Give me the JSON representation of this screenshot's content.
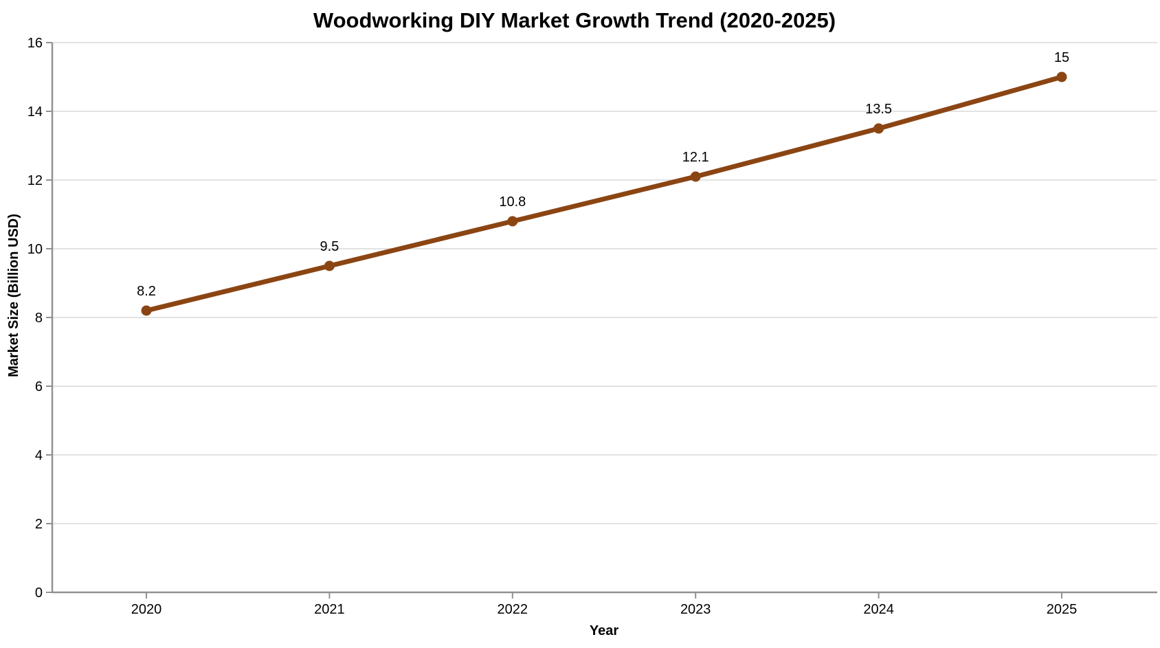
{
  "chart_data": {
    "type": "line",
    "title": "Woodworking DIY Market Growth Trend (2020-2025)",
    "xlabel": "Year",
    "ylabel": "Market Size (Billion USD)",
    "categories": [
      "2020",
      "2021",
      "2022",
      "2023",
      "2024",
      "2025"
    ],
    "series": [
      {
        "name": "Market Size (Billion USD)",
        "values": [
          8.2,
          9.5,
          10.8,
          12.1,
          13.5,
          15
        ],
        "point_labels": [
          "8.2",
          "9.5",
          "10.8",
          "12.1",
          "13.5",
          "15"
        ],
        "color": "#8B4513"
      }
    ],
    "ylim": [
      0,
      16
    ],
    "yticks": [
      0,
      2,
      4,
      6,
      8,
      10,
      12,
      14,
      16
    ],
    "grid": true,
    "legend_position": "none",
    "colors": {
      "line": "#8B4513",
      "marker": "#8B4513",
      "grid": "#e2e2e2",
      "axis": "#919191",
      "text": "#000000",
      "background": "#ffffff"
    }
  }
}
